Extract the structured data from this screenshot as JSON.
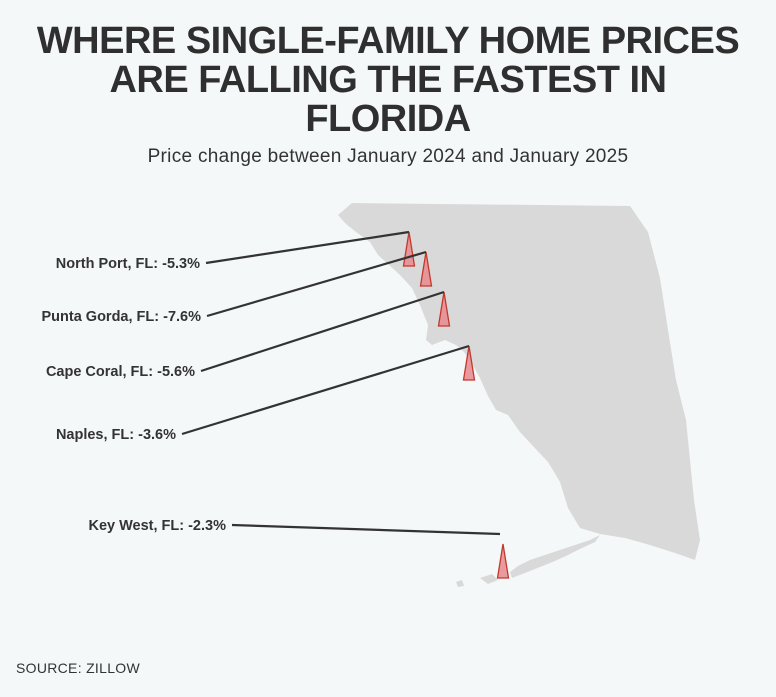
{
  "title_lines": [
    "WHERE SINGLE-FAMILY HOME PRICES",
    "ARE FALLING THE FASTEST IN",
    "FLORIDA"
  ],
  "subtitle": "Price change between January 2024 and January 2025",
  "source": "SOURCE: ZILLOW",
  "colors": {
    "map_fill": "#d9d9d9",
    "marker_fill": "#e8888e",
    "marker_stroke": "#c0392b",
    "leader_line": "#333333",
    "background": "#f4f8f9"
  },
  "chart_data": {
    "type": "map-annotation",
    "title": "WHERE SINGLE-FAMILY HOME PRICES ARE FALLING THE FASTEST IN FLORIDA",
    "subtitle": "Price change between January 2024 and January 2025",
    "unit": "%",
    "cities": [
      {
        "name": "North Port, FL",
        "value": -5.3,
        "label": "North Port, FL: -5.3%"
      },
      {
        "name": "Punta Gorda, FL",
        "value": -7.6,
        "label": "Punta Gorda, FL: -7.6%"
      },
      {
        "name": "Cape Coral, FL",
        "value": -5.6,
        "label": "Cape Coral, FL: -5.6%"
      },
      {
        "name": "Naples, FL",
        "value": -3.6,
        "label": "Naples, FL: -3.6%"
      },
      {
        "name": "Key West, FL",
        "value": -2.3,
        "label": "Key West, FL: -2.3%"
      }
    ]
  }
}
